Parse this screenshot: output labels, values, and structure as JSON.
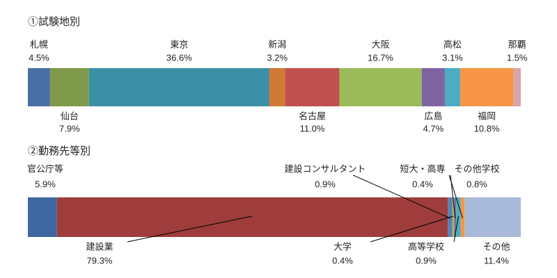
{
  "chart_data": [
    {
      "type": "stacked-bar",
      "title": "①試験地別",
      "xlim": [
        0,
        100
      ],
      "series": [
        {
          "name": "札幌",
          "color": "#4a6fa5",
          "values": [
            4.5
          ],
          "value_labels": [
            "4.5%"
          ],
          "label_side": "above"
        },
        {
          "name": "仙台",
          "color": "#7f9a4a",
          "values": [
            7.9
          ],
          "value_labels": [
            "7.9%"
          ],
          "label_side": "below"
        },
        {
          "name": "東京",
          "color": "#3a8fa5",
          "values": [
            36.6
          ],
          "value_labels": [
            "36.6%"
          ],
          "label_side": "above"
        },
        {
          "name": "新潟",
          "color": "#d07a35",
          "values": [
            3.2
          ],
          "value_labels": [
            "3.2%"
          ],
          "label_side": "above"
        },
        {
          "name": "名古屋",
          "color": "#c0504d",
          "values": [
            11.0
          ],
          "value_labels": [
            "11.0%"
          ],
          "label_side": "below"
        },
        {
          "name": "大阪",
          "color": "#9bbb59",
          "values": [
            16.7
          ],
          "value_labels": [
            "16.7%"
          ],
          "label_side": "above"
        },
        {
          "name": "広島",
          "color": "#8064a2",
          "values": [
            4.7
          ],
          "value_labels": [
            "4.7%"
          ],
          "label_side": "below"
        },
        {
          "name": "高松",
          "color": "#4bacc6",
          "values": [
            3.1
          ],
          "value_labels": [
            "3.1%"
          ],
          "label_side": "above"
        },
        {
          "name": "福岡",
          "color": "#f79646",
          "values": [
            10.8
          ],
          "value_labels": [
            "10.8%"
          ],
          "label_side": "below"
        },
        {
          "name": "那覇",
          "color": "#d9a5a5",
          "values": [
            1.5
          ],
          "value_labels": [
            "1.5%"
          ],
          "label_side": "above"
        }
      ]
    },
    {
      "type": "stacked-bar",
      "title": "②勤務先等別",
      "xlim": [
        0,
        100
      ],
      "series": [
        {
          "name": "官公庁等",
          "color": "#3f67a0",
          "values": [
            5.9
          ],
          "value_labels": [
            "5.9%"
          ],
          "label_side": "above"
        },
        {
          "name": "建設業",
          "color": "#9e3d3b",
          "values": [
            79.3
          ],
          "value_labels": [
            "79.3%"
          ],
          "label_side": "below"
        },
        {
          "name": "建設コンサルタント",
          "color": "#5b7fb5",
          "values": [
            0.9
          ],
          "value_labels": [
            "0.9%"
          ],
          "label_side": "above"
        },
        {
          "name": "大学",
          "color": "#9bbb59",
          "values": [
            0.4
          ],
          "value_labels": [
            "0.4%"
          ],
          "label_side": "below"
        },
        {
          "name": "短大・高専",
          "color": "#8064a2",
          "values": [
            0.4
          ],
          "value_labels": [
            "0.4%"
          ],
          "label_side": "above"
        },
        {
          "name": "高等学校",
          "color": "#4bacc6",
          "values": [
            0.9
          ],
          "value_labels": [
            "0.9%"
          ],
          "label_side": "below"
        },
        {
          "name": "その他学校",
          "color": "#f79646",
          "values": [
            0.8
          ],
          "value_labels": [
            "0.8%"
          ],
          "label_side": "above"
        },
        {
          "name": "その他",
          "color": "#a9b9d9",
          "values": [
            11.4
          ],
          "value_labels": [
            "11.4%"
          ],
          "label_side": "below"
        }
      ]
    }
  ]
}
